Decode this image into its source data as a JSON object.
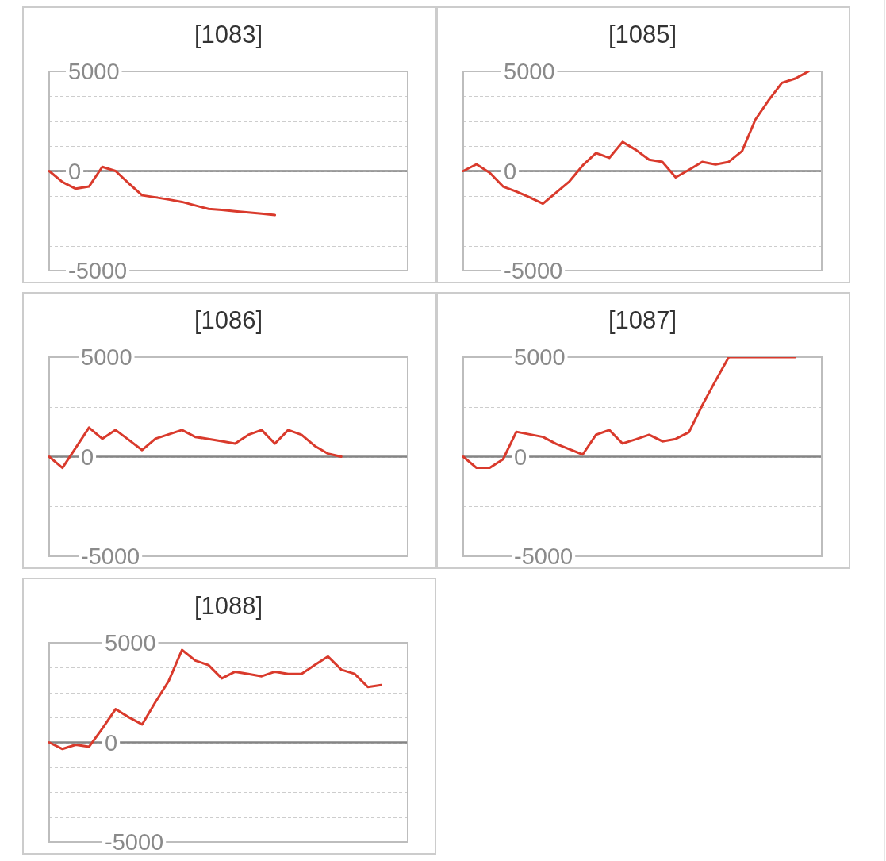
{
  "chart_data": [
    {
      "type": "line",
      "title": "[1083]",
      "categories": [
        null,
        null,
        null,
        null,
        null,
        null,
        null,
        null,
        null,
        null,
        null,
        null,
        null,
        null,
        null,
        null,
        null,
        null,
        null,
        null,
        null,
        null,
        null,
        null,
        null,
        null,
        null,
        null
      ],
      "series": [
        {
          "color": "#d93a2c",
          "values": [
            0,
            -550,
            -890,
            -780,
            210,
            0,
            -620,
            -1220,
            -1320,
            -1430,
            -1550,
            -1730,
            -1900,
            -1950,
            -2020,
            -2080,
            -2140,
            -2210,
            null,
            null,
            null,
            null,
            null,
            null,
            null,
            null,
            null,
            null
          ]
        }
      ],
      "ylim": [
        -5000,
        5000
      ],
      "yticks": [
        5000,
        {
          "value": 3750,
          "label": null
        },
        {
          "value": 2500,
          "label": null
        },
        {
          "value": 1250,
          "label": null
        },
        0,
        {
          "value": -1250,
          "label": null
        },
        {
          "value": -2500,
          "label": null
        },
        {
          "value": -3750,
          "label": null
        },
        -5000
      ],
      "grid": "y",
      "ref_lines": [
        {
          "axis": "y",
          "value": 0,
          "color": "#858585"
        }
      ],
      "tick_labels": "y",
      "marker": "none"
    },
    {
      "type": "line",
      "title": "[1085]",
      "categories": [
        null,
        null,
        null,
        null,
        null,
        null,
        null,
        null,
        null,
        null,
        null,
        null,
        null,
        null,
        null,
        null,
        null,
        null,
        null,
        null,
        null,
        null,
        null,
        null,
        null,
        null,
        null,
        null
      ],
      "series": [
        {
          "color": "#d93a2c",
          "values": [
            0,
            340,
            -90,
            -780,
            -1030,
            -1320,
            -1640,
            -1080,
            -520,
            280,
            900,
            660,
            1460,
            1060,
            570,
            460,
            -320,
            60,
            460,
            330,
            460,
            1000,
            2580,
            3550,
            4430,
            4640,
            5000,
            null
          ]
        }
      ],
      "ylim": [
        -5000,
        5000
      ],
      "yticks": [
        5000,
        {
          "value": 3750,
          "label": null
        },
        {
          "value": 2500,
          "label": null
        },
        {
          "value": 1250,
          "label": null
        },
        0,
        {
          "value": -1250,
          "label": null
        },
        {
          "value": -2500,
          "label": null
        },
        {
          "value": -3750,
          "label": null
        },
        -5000
      ],
      "grid": "y",
      "ref_lines": [
        {
          "axis": "y",
          "value": 0,
          "color": "#858585"
        }
      ],
      "tick_labels": "y",
      "marker": "none"
    },
    {
      "type": "line",
      "title": "[1086]",
      "categories": [
        null,
        null,
        null,
        null,
        null,
        null,
        null,
        null,
        null,
        null,
        null,
        null,
        null,
        null,
        null,
        null,
        null,
        null,
        null,
        null,
        null,
        null,
        null,
        null,
        null,
        null,
        null,
        null
      ],
      "series": [
        {
          "color": "#d93a2c",
          "values": [
            0,
            -560,
            440,
            1460,
            900,
            1340,
            840,
            330,
            900,
            1120,
            1340,
            990,
            890,
            780,
            660,
            1100,
            1340,
            660,
            1340,
            1100,
            540,
            150,
            0,
            null,
            null,
            null,
            null,
            null
          ]
        }
      ],
      "ylim": [
        -5000,
        5000
      ],
      "yticks": [
        5000,
        {
          "value": 3750,
          "label": null
        },
        {
          "value": 2500,
          "label": null
        },
        {
          "value": 1250,
          "label": null
        },
        0,
        {
          "value": -1250,
          "label": null
        },
        {
          "value": -2500,
          "label": null
        },
        {
          "value": -3750,
          "label": null
        },
        -5000
      ],
      "grid": "y",
      "ref_lines": [
        {
          "axis": "y",
          "value": 0,
          "color": "#858585"
        }
      ],
      "tick_labels": "y",
      "marker": "none"
    },
    {
      "type": "line",
      "title": "[1087]",
      "categories": [
        null,
        null,
        null,
        null,
        null,
        null,
        null,
        null,
        null,
        null,
        null,
        null,
        null,
        null,
        null,
        null,
        null,
        null,
        null,
        null,
        null,
        null,
        null,
        null,
        null,
        null,
        null,
        null
      ],
      "series": [
        {
          "color": "#d93a2c",
          "values": [
            0,
            -560,
            -560,
            -130,
            1250,
            1120,
            990,
            640,
            370,
            110,
            1100,
            1340,
            660,
            870,
            1100,
            770,
            890,
            1230,
            2580,
            3810,
            5000,
            5000,
            5000,
            5000,
            5000,
            5000,
            null,
            null
          ]
        }
      ],
      "ylim": [
        -5000,
        5000
      ],
      "yticks": [
        5000,
        {
          "value": 3750,
          "label": null
        },
        {
          "value": 2500,
          "label": null
        },
        {
          "value": 1250,
          "label": null
        },
        0,
        {
          "value": -1250,
          "label": null
        },
        {
          "value": -2500,
          "label": null
        },
        {
          "value": -3750,
          "label": null
        },
        -5000
      ],
      "grid": "y",
      "ref_lines": [
        {
          "axis": "y",
          "value": 0,
          "color": "#858585"
        }
      ],
      "tick_labels": "y",
      "marker": "none"
    },
    {
      "type": "line",
      "title": "[1088]",
      "categories": [
        null,
        null,
        null,
        null,
        null,
        null,
        null,
        null,
        null,
        null,
        null,
        null,
        null,
        null,
        null,
        null,
        null,
        null,
        null,
        null,
        null,
        null,
        null,
        null,
        null,
        null,
        null,
        null
      ],
      "series": [
        {
          "color": "#d93a2c",
          "values": [
            0,
            -330,
            -120,
            -220,
            690,
            1670,
            1260,
            900,
            2020,
            3080,
            4640,
            4110,
            3880,
            3210,
            3550,
            3440,
            3320,
            3550,
            3440,
            3440,
            3880,
            4310,
            3650,
            3440,
            2780,
            2880,
            null,
            null
          ]
        }
      ],
      "ylim": [
        -5000,
        5000
      ],
      "yticks": [
        5000,
        {
          "value": 3750,
          "label": null
        },
        {
          "value": 2500,
          "label": null
        },
        {
          "value": 1250,
          "label": null
        },
        0,
        {
          "value": -1250,
          "label": null
        },
        {
          "value": -2500,
          "label": null
        },
        {
          "value": -3750,
          "label": null
        },
        -5000
      ],
      "grid": "y",
      "ref_lines": [
        {
          "axis": "y",
          "value": 0,
          "color": "#858585"
        }
      ],
      "tick_labels": "y",
      "marker": "none"
    }
  ]
}
